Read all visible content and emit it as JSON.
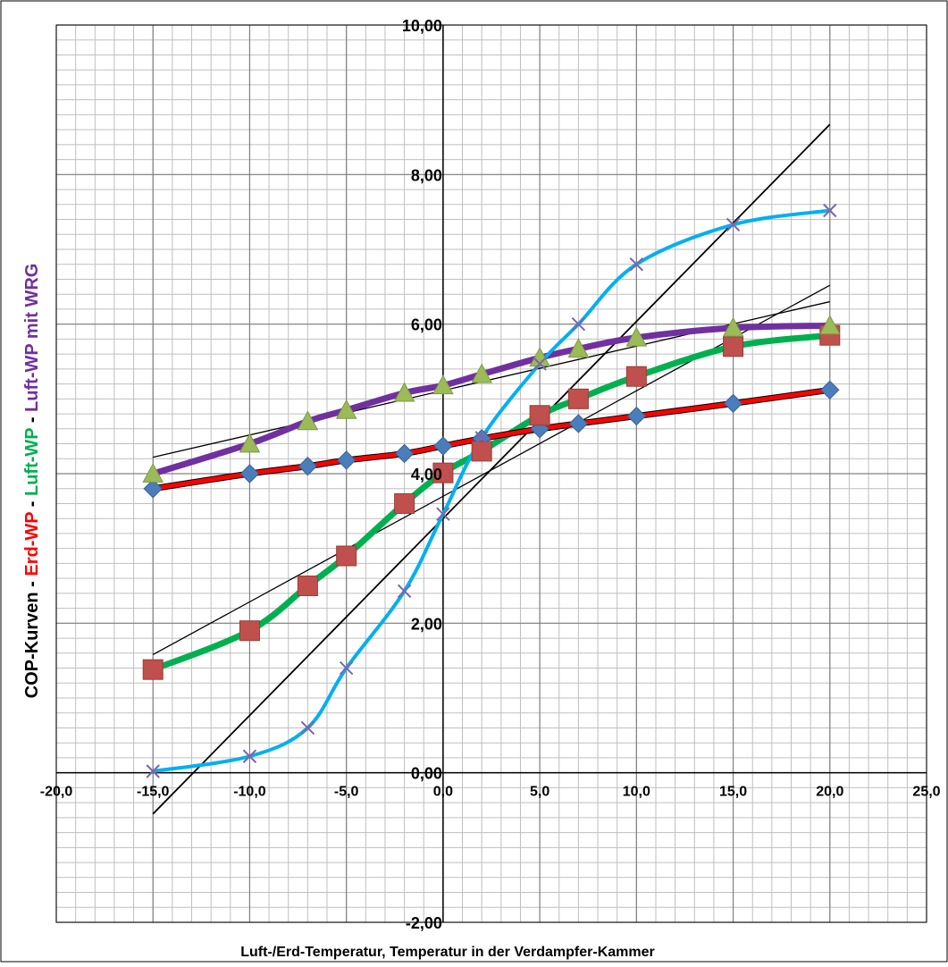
{
  "chart_data": {
    "type": "scatter",
    "xlabel": "Luft-/Erd-Temperatur, Temperatur in der Verdampfer-Kammer",
    "ylabel_parts": [
      {
        "text": "COP-Kurven - ",
        "color": "#000000"
      },
      {
        "text": "Erd-WP",
        "color": "#ff0000"
      },
      {
        "text": " - ",
        "color": "#000000"
      },
      {
        "text": "Luft-WP",
        "color": "#00b050"
      },
      {
        "text": " - ",
        "color": "#000000"
      },
      {
        "text": "Luft-WP mit WRG",
        "color": "#7030a0"
      }
    ],
    "xlim": [
      -20,
      25
    ],
    "ylim": [
      -2,
      10
    ],
    "x_ticks": [
      -20,
      -15,
      -10,
      -5,
      0,
      5,
      10,
      15,
      20,
      25
    ],
    "x_tick_labels": [
      "-20,0",
      "-15,0",
      "-10,0",
      "-5,0",
      "0,0",
      "5,0",
      "10,0",
      "15,0",
      "20,0",
      "25,0"
    ],
    "y_ticks": [
      -2,
      0,
      2,
      4,
      6,
      8,
      10
    ],
    "y_tick_labels": [
      "-2,00",
      "0,00",
      "2,00",
      "4,00",
      "6,00",
      "8,00",
      "10,00"
    ],
    "minor_x_step": 1,
    "minor_y_step": 0.2,
    "grid": true,
    "series": [
      {
        "id": "erd-wp",
        "line_color": "#ff0000",
        "line_width": 5,
        "marker": "diamond",
        "marker_color": "#4a7ebb",
        "x": [
          -15,
          -10,
          -7,
          -5,
          -2,
          0,
          2,
          5,
          7,
          10,
          15,
          20
        ],
        "y": [
          3.8,
          4.0,
          4.1,
          4.18,
          4.27,
          4.37,
          4.47,
          4.6,
          4.67,
          4.77,
          4.94,
          5.12
        ]
      },
      {
        "id": "luft-wp",
        "line_color": "#00b050",
        "line_width": 7,
        "marker": "square",
        "marker_color": "#c0504d",
        "x": [
          -15,
          -10,
          -7,
          -5,
          -2,
          0,
          2,
          5,
          7,
          10,
          15,
          20
        ],
        "y": [
          1.38,
          1.9,
          2.5,
          2.9,
          3.6,
          4.01,
          4.3,
          4.78,
          5.0,
          5.3,
          5.7,
          5.85
        ]
      },
      {
        "id": "luft-wp-wrg",
        "line_color": "#7030a0",
        "line_width": 7,
        "marker": "triangle",
        "marker_color": "#9bbb59",
        "x": [
          -15,
          -10,
          -7,
          -5,
          -2,
          0,
          2,
          5,
          7,
          10,
          15,
          20
        ],
        "y": [
          4.0,
          4.4,
          4.7,
          4.85,
          5.08,
          5.18,
          5.33,
          5.55,
          5.67,
          5.82,
          5.95,
          5.98
        ]
      },
      {
        "id": "blue",
        "line_color": "#00b0f0",
        "line_width": 4,
        "marker": "x",
        "marker_color": "#7f64a8",
        "x": [
          -15,
          -10,
          -7,
          -5,
          -2,
          0,
          2,
          5,
          7,
          10,
          15,
          20
        ],
        "y": [
          0.02,
          0.22,
          0.6,
          1.4,
          2.43,
          3.46,
          4.48,
          5.47,
          6.0,
          6.8,
          7.33,
          7.52
        ]
      }
    ],
    "trendlines": [
      {
        "series": "erd-wp",
        "x": [
          -15,
          20
        ],
        "y": [
          3.82,
          5.12
        ],
        "width": 1.3
      },
      {
        "series": "luft-wp",
        "x": [
          -15,
          20
        ],
        "y": [
          1.58,
          6.52
        ],
        "width": 1.3
      },
      {
        "series": "luft-wp-wrg",
        "x": [
          -15,
          20
        ],
        "y": [
          4.22,
          6.3
        ],
        "width": 1.3
      },
      {
        "series": "blue",
        "x": [
          -15,
          20
        ],
        "y": [
          -0.55,
          8.67
        ],
        "width": 1.8
      }
    ]
  }
}
